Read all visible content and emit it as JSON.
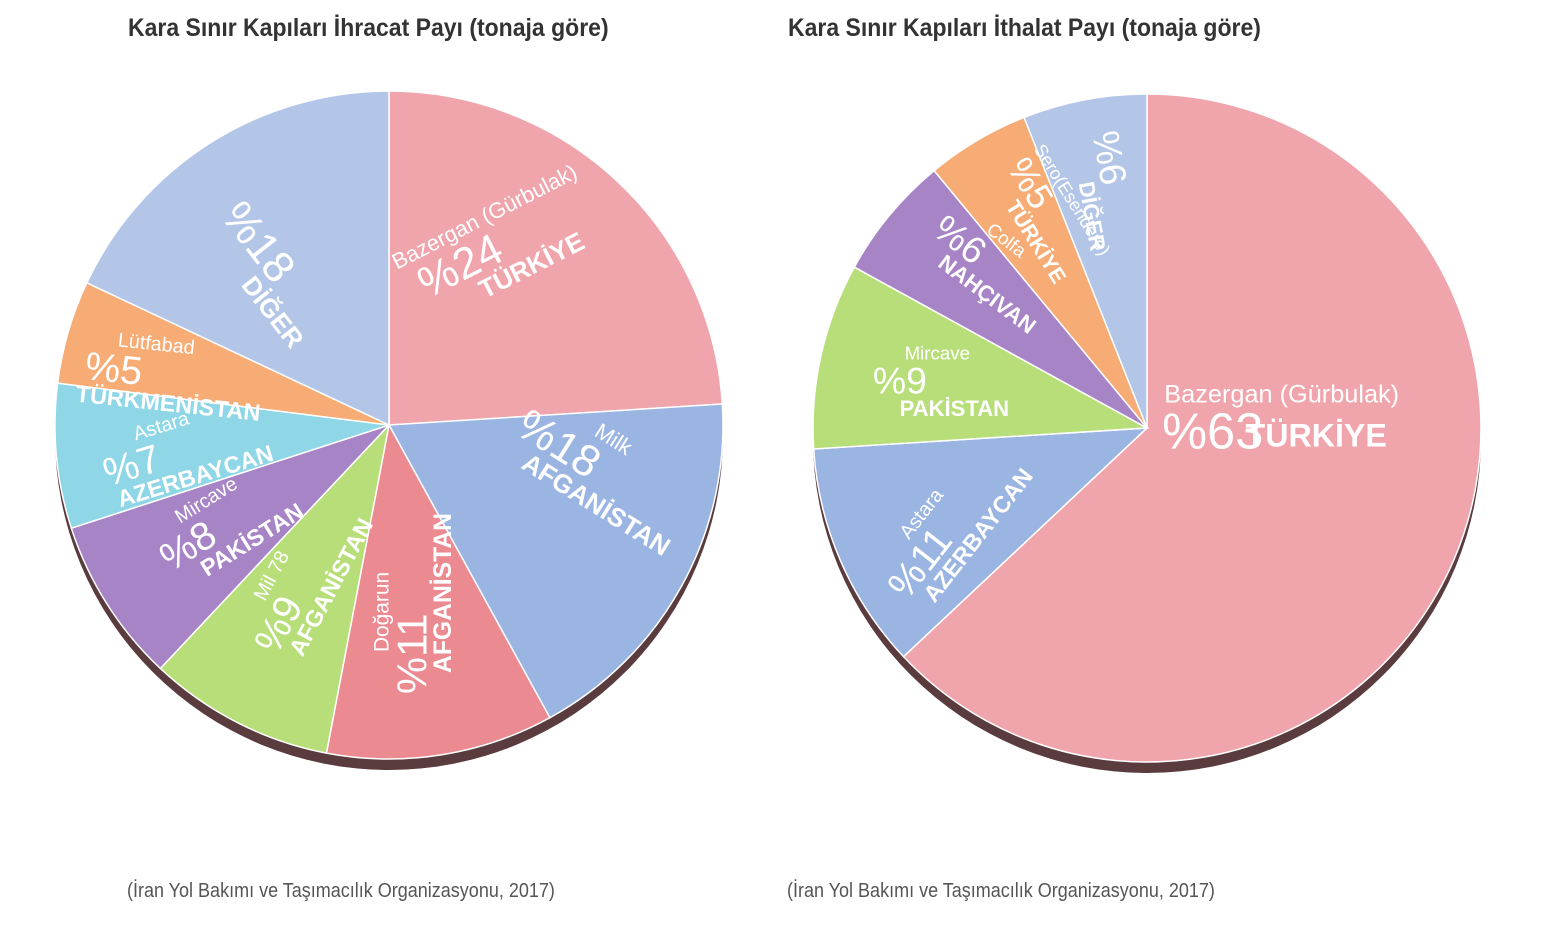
{
  "chart_data": [
    {
      "type": "pie",
      "title": "Kara Sınır Kapıları İhracat Payı (tonaja göre)",
      "source": "(İran Yol Bakımı ve Taşımacılık Organizasyonu, 2017)",
      "unit": "%",
      "slices": [
        {
          "gate": "Bazergan (Gürbulak)",
          "country": "TÜRKİYE",
          "label": "%24",
          "value": 24,
          "color": "#f0a4ab"
        },
        {
          "gate": "Milk",
          "country": "AFGANİSTAN",
          "label": "%18",
          "value": 18,
          "color": "#9bb5e3"
        },
        {
          "gate": "Doğarun",
          "country": "AFGANİSTAN",
          "label": "%11",
          "value": 11,
          "color": "#ec8a91"
        },
        {
          "gate": "Mil 78",
          "country": "AFGANİSTAN",
          "label": "%9",
          "value": 9,
          "color": "#b8de7a"
        },
        {
          "gate": "Mircave",
          "country": "PAKİSTAN",
          "label": "%8",
          "value": 8,
          "color": "#a784c6"
        },
        {
          "gate": "Astara",
          "country": "AZERBAYCAN",
          "label": "%7",
          "value": 7,
          "color": "#8fd6e7"
        },
        {
          "gate": "Lütfabad",
          "country": "TÜRKMENİSTAN",
          "label": "%5",
          "value": 5,
          "color": "#f6ac74"
        },
        {
          "gate": "",
          "country": "DİĞER",
          "label": "%18",
          "value": 18,
          "color": "#b3c6e8"
        }
      ]
    },
    {
      "type": "pie",
      "title": "Kara Sınır Kapıları İthalat Payı (tonaja göre)",
      "source": "(İran Yol Bakımı ve Taşımacılık Organizasyonu, 2017)",
      "unit": "%",
      "slices": [
        {
          "gate": "Bazergan (Gürbulak)",
          "country": "TÜRKİYE",
          "label": "%63",
          "value": 63,
          "color": "#f0a4ab"
        },
        {
          "gate": "Astara",
          "country": "AZERBAYCAN",
          "label": "%11",
          "value": 11,
          "color": "#9bb5e3"
        },
        {
          "gate": "Mircave",
          "country": "PAKİSTAN",
          "label": "%9",
          "value": 9,
          "color": "#b8de7a"
        },
        {
          "gate": "Colfa",
          "country": "NAHÇIVAN",
          "label": "%6",
          "value": 6,
          "color": "#a784c6"
        },
        {
          "gate": "Sero(Esendere)",
          "country": "TÜRKİYE",
          "label": "%5",
          "value": 5,
          "color": "#f6ac74"
        },
        {
          "gate": "",
          "country": "DİĞER",
          "label": "%6",
          "value": 6,
          "color": "#b3c6e8"
        }
      ]
    }
  ]
}
